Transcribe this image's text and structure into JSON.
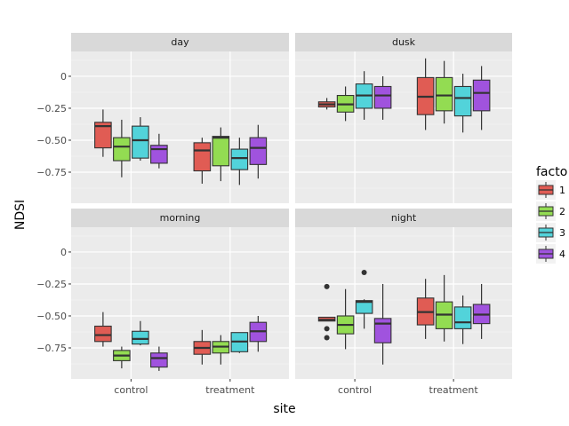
{
  "chart_data": {
    "type": "boxplot",
    "xlabel": "site",
    "ylabel": "NDSI",
    "ylim": [
      -0.993,
      0.194
    ],
    "yticks": [
      0,
      -0.25,
      -0.5,
      -0.75
    ],
    "ytick_labels": [
      "0",
      "−0.25",
      "−0.50",
      "−0.75"
    ],
    "categories": [
      "control",
      "treatment"
    ],
    "legend": {
      "title": "facto",
      "position": "right",
      "entries": [
        {
          "label": "1",
          "color": "#e05c54"
        },
        {
          "label": "2",
          "color": "#93dc52"
        },
        {
          "label": "3",
          "color": "#52d3da"
        },
        {
          "label": "4",
          "color": "#a053de"
        }
      ]
    },
    "facets": [
      {
        "name": "day",
        "boxes": [
          {
            "site": "control",
            "factor": "1",
            "whislo": -0.63,
            "q1": -0.56,
            "med": -0.39,
            "q3": -0.36,
            "whishi": -0.26,
            "outliers": []
          },
          {
            "site": "control",
            "factor": "2",
            "whislo": -0.79,
            "q1": -0.66,
            "med": -0.55,
            "q3": -0.48,
            "whishi": -0.34,
            "outliers": []
          },
          {
            "site": "control",
            "factor": "3",
            "whislo": -0.66,
            "q1": -0.64,
            "med": -0.5,
            "q3": -0.39,
            "whishi": -0.32,
            "outliers": []
          },
          {
            "site": "control",
            "factor": "4",
            "whislo": -0.72,
            "q1": -0.68,
            "med": -0.57,
            "q3": -0.54,
            "whishi": -0.45,
            "outliers": []
          },
          {
            "site": "treatment",
            "factor": "1",
            "whislo": -0.84,
            "q1": -0.74,
            "med": -0.58,
            "q3": -0.52,
            "whishi": -0.48,
            "outliers": []
          },
          {
            "site": "treatment",
            "factor": "2",
            "whislo": -0.82,
            "q1": -0.7,
            "med": -0.48,
            "q3": -0.47,
            "whishi": -0.4,
            "outliers": []
          },
          {
            "site": "treatment",
            "factor": "3",
            "whislo": -0.85,
            "q1": -0.73,
            "med": -0.64,
            "q3": -0.57,
            "whishi": -0.48,
            "outliers": []
          },
          {
            "site": "treatment",
            "factor": "4",
            "whislo": -0.8,
            "q1": -0.69,
            "med": -0.56,
            "q3": -0.48,
            "whishi": -0.38,
            "outliers": []
          }
        ]
      },
      {
        "name": "dusk",
        "boxes": [
          {
            "site": "control",
            "factor": "1",
            "whislo": -0.26,
            "q1": -0.24,
            "med": -0.22,
            "q3": -0.2,
            "whishi": -0.17,
            "outliers": []
          },
          {
            "site": "control",
            "factor": "2",
            "whislo": -0.35,
            "q1": -0.28,
            "med": -0.22,
            "q3": -0.15,
            "whishi": -0.08,
            "outliers": []
          },
          {
            "site": "control",
            "factor": "3",
            "whislo": -0.34,
            "q1": -0.25,
            "med": -0.15,
            "q3": -0.06,
            "whishi": 0.04,
            "outliers": []
          },
          {
            "site": "control",
            "factor": "4",
            "whislo": -0.34,
            "q1": -0.25,
            "med": -0.15,
            "q3": -0.08,
            "whishi": 0.0,
            "outliers": []
          },
          {
            "site": "treatment",
            "factor": "1",
            "whislo": -0.42,
            "q1": -0.3,
            "med": -0.16,
            "q3": -0.01,
            "whishi": 0.14,
            "outliers": []
          },
          {
            "site": "treatment",
            "factor": "2",
            "whislo": -0.37,
            "q1": -0.27,
            "med": -0.15,
            "q3": -0.01,
            "whishi": 0.12,
            "outliers": []
          },
          {
            "site": "treatment",
            "factor": "3",
            "whislo": -0.44,
            "q1": -0.31,
            "med": -0.17,
            "q3": -0.08,
            "whishi": 0.02,
            "outliers": []
          },
          {
            "site": "treatment",
            "factor": "4",
            "whislo": -0.42,
            "q1": -0.27,
            "med": -0.13,
            "q3": -0.03,
            "whishi": 0.08,
            "outliers": []
          }
        ]
      },
      {
        "name": "morning",
        "boxes": [
          {
            "site": "control",
            "factor": "1",
            "whislo": -0.74,
            "q1": -0.7,
            "med": -0.65,
            "q3": -0.58,
            "whishi": -0.47,
            "outliers": []
          },
          {
            "site": "control",
            "factor": "2",
            "whislo": -0.91,
            "q1": -0.85,
            "med": -0.81,
            "q3": -0.77,
            "whishi": -0.74,
            "outliers": []
          },
          {
            "site": "control",
            "factor": "3",
            "whislo": -0.73,
            "q1": -0.72,
            "med": -0.68,
            "q3": -0.62,
            "whishi": -0.54,
            "outliers": []
          },
          {
            "site": "control",
            "factor": "4",
            "whislo": -0.93,
            "q1": -0.9,
            "med": -0.83,
            "q3": -0.79,
            "whishi": -0.74,
            "outliers": []
          },
          {
            "site": "treatment",
            "factor": "1",
            "whislo": -0.88,
            "q1": -0.8,
            "med": -0.75,
            "q3": -0.7,
            "whishi": -0.61,
            "outliers": []
          },
          {
            "site": "treatment",
            "factor": "2",
            "whislo": -0.88,
            "q1": -0.79,
            "med": -0.74,
            "q3": -0.7,
            "whishi": -0.65,
            "outliers": []
          },
          {
            "site": "treatment",
            "factor": "3",
            "whislo": -0.79,
            "q1": -0.78,
            "med": -0.7,
            "q3": -0.63,
            "whishi": -0.63,
            "outliers": []
          },
          {
            "site": "treatment",
            "factor": "4",
            "whislo": -0.78,
            "q1": -0.7,
            "med": -0.62,
            "q3": -0.55,
            "whishi": -0.5,
            "outliers": []
          }
        ]
      },
      {
        "name": "night",
        "boxes": [
          {
            "site": "control",
            "factor": "1",
            "whislo": -0.53,
            "q1": -0.54,
            "med": -0.53,
            "q3": -0.51,
            "whishi": -0.51,
            "outliers": [
              -0.27,
              -0.6,
              -0.67
            ]
          },
          {
            "site": "control",
            "factor": "2",
            "whislo": -0.76,
            "q1": -0.64,
            "med": -0.57,
            "q3": -0.5,
            "whishi": -0.29,
            "outliers": []
          },
          {
            "site": "control",
            "factor": "3",
            "whislo": -0.6,
            "q1": -0.48,
            "med": -0.39,
            "q3": -0.38,
            "whishi": -0.37,
            "outliers": [
              -0.16
            ]
          },
          {
            "site": "control",
            "factor": "4",
            "whislo": -0.88,
            "q1": -0.71,
            "med": -0.56,
            "q3": -0.52,
            "whishi": -0.25,
            "outliers": []
          },
          {
            "site": "treatment",
            "factor": "1",
            "whislo": -0.68,
            "q1": -0.57,
            "med": -0.47,
            "q3": -0.36,
            "whishi": -0.21,
            "outliers": []
          },
          {
            "site": "treatment",
            "factor": "2",
            "whislo": -0.7,
            "q1": -0.6,
            "med": -0.49,
            "q3": -0.39,
            "whishi": -0.18,
            "outliers": []
          },
          {
            "site": "treatment",
            "factor": "3",
            "whislo": -0.72,
            "q1": -0.6,
            "med": -0.55,
            "q3": -0.43,
            "whishi": -0.34,
            "outliers": []
          },
          {
            "site": "treatment",
            "factor": "4",
            "whislo": -0.68,
            "q1": -0.56,
            "med": -0.49,
            "q3": -0.41,
            "whishi": -0.25,
            "outliers": []
          }
        ]
      }
    ]
  }
}
